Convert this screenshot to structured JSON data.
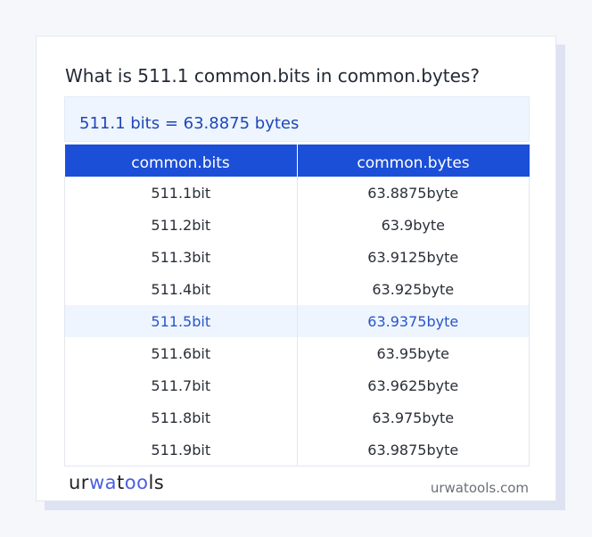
{
  "title": "What is 511.1 common.bits in common.bytes?",
  "result": "511.1 bits = 63.8875 bytes",
  "table": {
    "headers": [
      "common.bits",
      "common.bytes"
    ],
    "highlighted_row": 4,
    "rows": [
      [
        "511.1bit",
        "63.8875byte"
      ],
      [
        "511.2bit",
        "63.9byte"
      ],
      [
        "511.3bit",
        "63.9125byte"
      ],
      [
        "511.4bit",
        "63.925byte"
      ],
      [
        "511.5bit",
        "63.9375byte"
      ],
      [
        "511.6bit",
        "63.95byte"
      ],
      [
        "511.7bit",
        "63.9625byte"
      ],
      [
        "511.8bit",
        "63.975byte"
      ],
      [
        "511.9bit",
        "63.9875byte"
      ]
    ]
  },
  "footer": {
    "logo": "urwatools",
    "site": "urwatools.com"
  },
  "colors": {
    "accent": "#1c4fd8",
    "highlight_bg": "#eef5fe"
  }
}
